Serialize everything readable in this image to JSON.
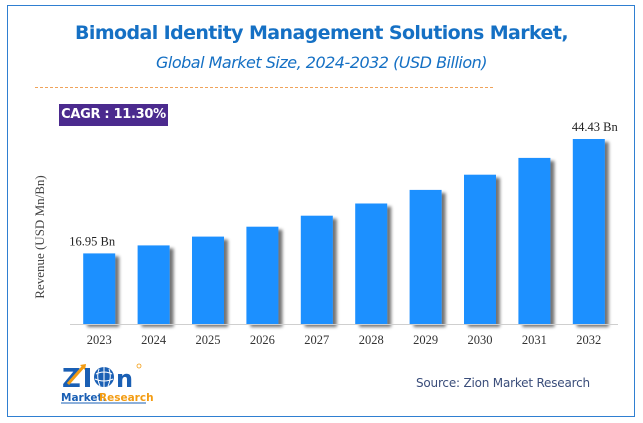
{
  "header": {
    "title": "Bimodal Identity Management Solutions Market,",
    "subtitle": "Global Market Size, 2024-2032 (USD Billion)"
  },
  "cagr_badge": "CAGR : 11.30%",
  "footer": {
    "source": "Source: Zion Market Research",
    "logo_text_top": "Zion",
    "logo_text_bottom_1": "Market.",
    "logo_text_bottom_2": "Research"
  },
  "colors": {
    "bar": "#1e90ff",
    "title": "#1570c4",
    "badge": "#4b2a8e",
    "divider": "#f0a35a",
    "frame": "#2f7fd1"
  },
  "chart_data": {
    "type": "bar",
    "title": "Bimodal Identity Management Solutions Market, Global Market Size, 2024-2032 (USD Billion)",
    "xlabel": "",
    "ylabel": "Revenue (USD Mn/Bn)",
    "categories": [
      "2023",
      "2024",
      "2025",
      "2026",
      "2027",
      "2028",
      "2029",
      "2030",
      "2031",
      "2032"
    ],
    "values": [
      16.95,
      18.87,
      21.0,
      23.37,
      26.0,
      28.95,
      32.2,
      35.85,
      39.9,
      44.43
    ],
    "data_labels": {
      "0": "16.95 Bn",
      "9": "44.43 Bn"
    },
    "ylim": [
      0,
      48
    ],
    "grid": false,
    "legend": "none"
  }
}
